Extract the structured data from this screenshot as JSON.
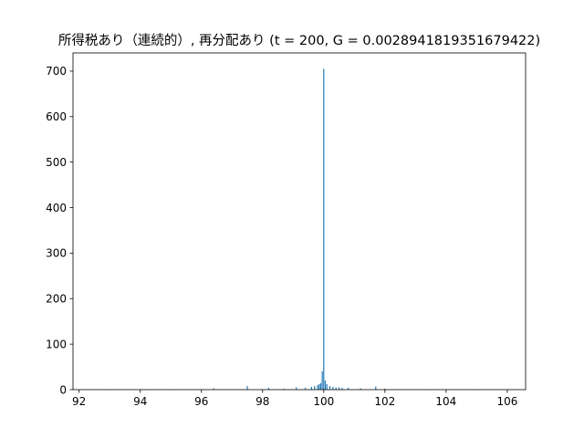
{
  "chart_data": {
    "type": "bar",
    "title": "所得税あり（連続的）, 再分配あり (t = 200, G = 0.0028941819351679422)",
    "xlabel": "",
    "ylabel": "",
    "xlim": [
      91.8,
      106.6
    ],
    "ylim": [
      0,
      740
    ],
    "x_ticks": [
      92,
      94,
      96,
      98,
      100,
      102,
      104,
      106
    ],
    "y_ticks": [
      0,
      100,
      200,
      300,
      400,
      500,
      600,
      700
    ],
    "bar_width": 0.035,
    "bar_color": "#1f77b4",
    "grid": false,
    "legend": "none",
    "bins": [
      {
        "x": 93.0,
        "count": 1
      },
      {
        "x": 94.2,
        "count": 1
      },
      {
        "x": 95.0,
        "count": 1
      },
      {
        "x": 96.4,
        "count": 3
      },
      {
        "x": 97.5,
        "count": 8
      },
      {
        "x": 98.2,
        "count": 4
      },
      {
        "x": 98.7,
        "count": 2
      },
      {
        "x": 99.1,
        "count": 5
      },
      {
        "x": 99.4,
        "count": 4
      },
      {
        "x": 99.6,
        "count": 6
      },
      {
        "x": 99.7,
        "count": 8
      },
      {
        "x": 99.8,
        "count": 10
      },
      {
        "x": 99.85,
        "count": 12
      },
      {
        "x": 99.9,
        "count": 14
      },
      {
        "x": 99.95,
        "count": 40
      },
      {
        "x": 100.0,
        "count": 705
      },
      {
        "x": 100.05,
        "count": 20
      },
      {
        "x": 100.1,
        "count": 12
      },
      {
        "x": 100.2,
        "count": 8
      },
      {
        "x": 100.3,
        "count": 6
      },
      {
        "x": 100.4,
        "count": 5
      },
      {
        "x": 100.5,
        "count": 5
      },
      {
        "x": 100.6,
        "count": 4
      },
      {
        "x": 100.8,
        "count": 4
      },
      {
        "x": 101.2,
        "count": 3
      },
      {
        "x": 101.7,
        "count": 7
      },
      {
        "x": 102.0,
        "count": 2
      },
      {
        "x": 102.5,
        "count": 1
      },
      {
        "x": 103.4,
        "count": 1
      },
      {
        "x": 104.0,
        "count": 1
      },
      {
        "x": 105.0,
        "count": 1
      }
    ]
  }
}
